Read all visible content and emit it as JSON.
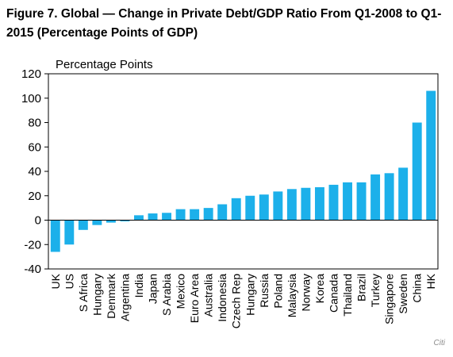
{
  "figure": {
    "title": "Figure 7. Global — Change in Private Debt/GDP Ratio From Q1-2008 to Q1-2015 (Percentage Points of GDP)",
    "credit": "Citi"
  },
  "chart_data": {
    "type": "bar",
    "title": "Figure 7. Global — Change in Private Debt/GDP Ratio From Q1-2008 to Q1-2015 (Percentage Points of GDP)",
    "xlabel": "",
    "ylabel": "Percentage Points",
    "ylim": [
      -40,
      120
    ],
    "yticks": [
      -40,
      -20,
      0,
      20,
      40,
      60,
      80,
      100,
      120
    ],
    "grid": false,
    "bar_color": "#1cb0ea",
    "categories": [
      "UK",
      "US",
      "S Africa",
      "Hungary",
      "Denmark",
      "Argentina",
      "India",
      "Japan",
      "S Arabia",
      "Mexico",
      "Euro Area",
      "Australia",
      "Indonesia",
      "Czech Rep",
      "Hungary",
      "Russia",
      "Poland",
      "Malaysia",
      "Norway",
      "Korea",
      "Canada",
      "Thailand",
      "Brazil",
      "Turkey",
      "Singapore",
      "Sweden",
      "China",
      "HK"
    ],
    "values": [
      -26,
      -20,
      -8,
      -4,
      -2,
      -1,
      4,
      5.5,
      6,
      9,
      9,
      10,
      13,
      18,
      20,
      21,
      23.5,
      25.5,
      26.5,
      27,
      29,
      31,
      31,
      37.5,
      38.5,
      43,
      80,
      106
    ]
  }
}
